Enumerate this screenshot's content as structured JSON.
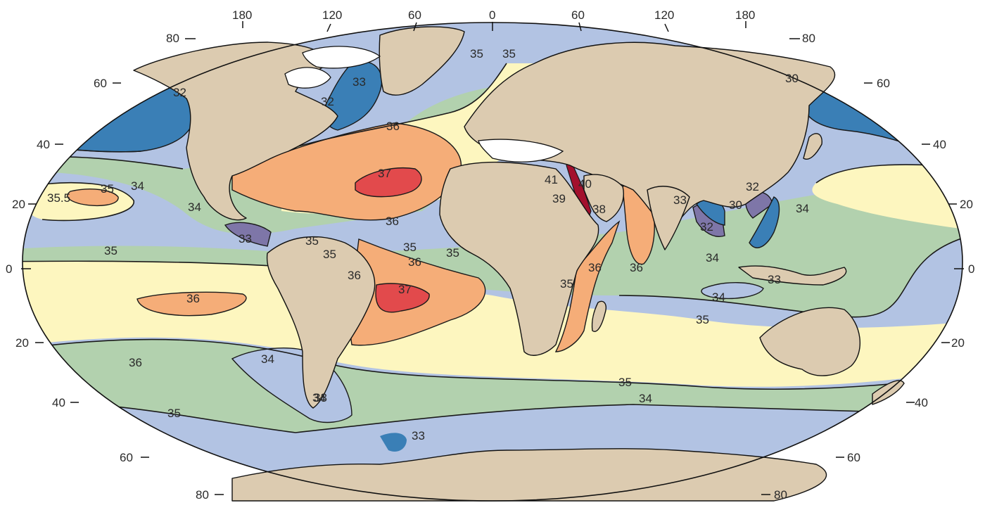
{
  "colors": {
    "s30": "#9789b5",
    "s32": "#7e76a8",
    "s33": "#3a7fb6",
    "s34": "#b2c3e3",
    "s35": "#b2d1ae",
    "s35_5": "#fdf6bf",
    "s36": "#f5ad78",
    "s37": "#e24a4c",
    "s40": "#a3102d",
    "land": "#dccbb0",
    "ice": "#ffffff",
    "ocean_edge": "#111111"
  },
  "longitude_ticks": [
    "180",
    "120",
    "60",
    "0",
    "60",
    "120",
    "180"
  ],
  "latitude_ticks": {
    "left": [
      "80",
      "60",
      "40",
      "20",
      "0",
      "20",
      "40",
      "60",
      "80"
    ],
    "right": [
      "80",
      "60",
      "40",
      "20",
      "0",
      "20",
      "40",
      "60",
      "80"
    ]
  },
  "salinity_labels": [
    "35",
    "35",
    "33",
    "32",
    "32",
    "36",
    "37",
    "36",
    "35.5",
    "35",
    "34",
    "34",
    "33",
    "35",
    "35",
    "35",
    "35",
    "36",
    "36",
    "35",
    "36",
    "37",
    "36",
    "34",
    "35",
    "34",
    "33",
    "41",
    "40",
    "39",
    "38",
    "36",
    "36",
    "35",
    "33",
    "32",
    "30",
    "32",
    "34",
    "34",
    "33",
    "34",
    "35",
    "35",
    "34",
    "33",
    "30"
  ]
}
